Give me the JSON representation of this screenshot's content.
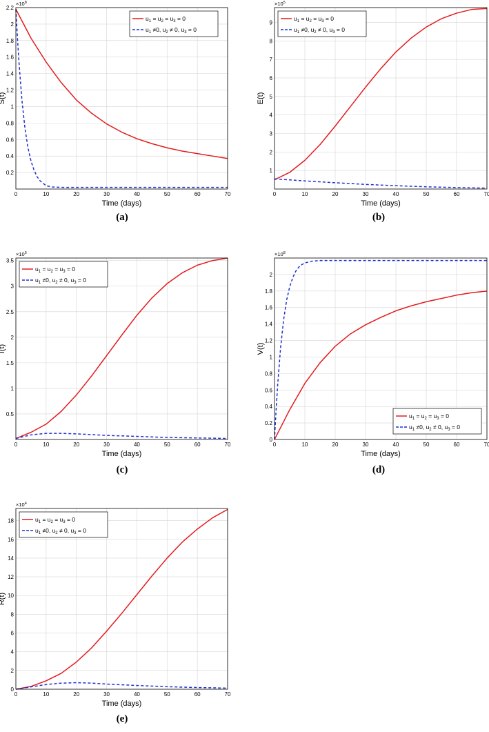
{
  "colors": {
    "series1": "#e41a1c",
    "series2": "#1f2fd0",
    "grid": "#d6d6d6",
    "axis": "#000000"
  },
  "legend": {
    "entries": [
      {
        "style": "solid",
        "sym1": "u",
        "sub1": "1",
        "sym2": "u",
        "sub2": "2",
        "sym3": "u",
        "sub3": "3",
        "op1": "=",
        "op2": "=",
        "op3": "=",
        "val": "0"
      },
      {
        "style": "dashed",
        "sym1": "u",
        "sub1": "1",
        "sym2": "u",
        "sub2": "2",
        "sym3": "u",
        "sub3": "3",
        "op1": "≠0,",
        "op2": "≠ 0,",
        "op3": "=",
        "val": "0"
      }
    ]
  },
  "chart_data": [
    {
      "type": "line",
      "caption": "(a)",
      "ylabel": "S(t)",
      "xlabel": "Time (days)",
      "exponent_base": "×10",
      "exponent": "8",
      "xlim": [
        0,
        70
      ],
      "ylim": [
        0.0,
        2.2
      ],
      "xticks": [
        0,
        10,
        20,
        30,
        40,
        50,
        60,
        70
      ],
      "yticks": [
        0.2,
        0.4,
        0.6,
        0.8,
        1.0,
        1.2,
        1.4,
        1.6,
        1.8,
        2.0,
        2.2
      ],
      "ytick_labels": [
        "0.2",
        "0.4",
        "0.6",
        "0.8",
        "1",
        "1.2",
        "1.4",
        "1.6",
        "1.8",
        "2",
        "2.2"
      ],
      "legend_position": "top-right",
      "series": [
        {
          "style": "solid",
          "x": [
            0,
            5,
            10,
            15,
            20,
            25,
            30,
            35,
            40,
            45,
            50,
            55,
            60,
            65,
            70
          ],
          "y": [
            2.18,
            1.83,
            1.54,
            1.29,
            1.08,
            0.92,
            0.79,
            0.69,
            0.61,
            0.55,
            0.5,
            0.46,
            0.43,
            0.4,
            0.37
          ]
        },
        {
          "style": "dashed",
          "x": [
            0,
            0.5,
            1,
            2,
            3,
            4,
            5,
            6,
            7,
            8,
            9,
            10,
            12,
            15,
            20,
            30,
            40,
            50,
            60,
            70
          ],
          "y": [
            2.18,
            1.85,
            1.55,
            1.08,
            0.74,
            0.5,
            0.34,
            0.23,
            0.15,
            0.1,
            0.07,
            0.04,
            0.025,
            0.02,
            0.02,
            0.02,
            0.02,
            0.02,
            0.02,
            0.02
          ]
        }
      ]
    },
    {
      "type": "line",
      "caption": "(b)",
      "ylabel": "E(t)",
      "xlabel": "Time (days)",
      "exponent_base": "×10",
      "exponent": "5",
      "xlim": [
        0,
        70
      ],
      "ylim": [
        0,
        9.8
      ],
      "xticks": [
        0,
        10,
        20,
        30,
        40,
        50,
        60,
        70
      ],
      "yticks": [
        1,
        2,
        3,
        4,
        5,
        6,
        7,
        8,
        9
      ],
      "ytick_labels": [
        "1",
        "2",
        "3",
        "4",
        "5",
        "6",
        "7",
        "8",
        "9"
      ],
      "legend_position": "top-left",
      "series": [
        {
          "style": "solid",
          "x": [
            0,
            5,
            10,
            15,
            20,
            25,
            30,
            35,
            40,
            45,
            50,
            55,
            60,
            65,
            70
          ],
          "y": [
            0.5,
            0.9,
            1.55,
            2.4,
            3.4,
            4.45,
            5.5,
            6.5,
            7.4,
            8.15,
            8.75,
            9.2,
            9.5,
            9.7,
            9.75
          ]
        },
        {
          "style": "dashed",
          "x": [
            0,
            10,
            20,
            30,
            40,
            50,
            60,
            70
          ],
          "y": [
            0.55,
            0.44,
            0.34,
            0.25,
            0.18,
            0.12,
            0.08,
            0.05
          ]
        }
      ]
    },
    {
      "type": "line",
      "caption": "(c)",
      "ylabel": "I(t)",
      "xlabel": "Time (days)",
      "exponent_base": "×10",
      "exponent": "5",
      "xlim": [
        0,
        70
      ],
      "ylim": [
        0,
        3.55
      ],
      "xticks": [
        0,
        10,
        20,
        30,
        40,
        50,
        60,
        70
      ],
      "yticks": [
        0.5,
        1.0,
        1.5,
        2.0,
        2.5,
        3.0,
        3.5
      ],
      "ytick_labels": [
        "0.5",
        "1",
        "1.5",
        "2",
        "2.5",
        "3",
        "3.5"
      ],
      "legend_position": "top-left",
      "series": [
        {
          "style": "solid",
          "x": [
            0,
            5,
            10,
            15,
            20,
            25,
            30,
            35,
            40,
            45,
            50,
            55,
            60,
            65,
            70
          ],
          "y": [
            0.02,
            0.14,
            0.3,
            0.55,
            0.87,
            1.24,
            1.64,
            2.04,
            2.43,
            2.77,
            3.05,
            3.26,
            3.41,
            3.5,
            3.55
          ]
        },
        {
          "style": "dashed",
          "x": [
            0,
            5,
            10,
            15,
            20,
            30,
            40,
            50,
            60,
            70
          ],
          "y": [
            0.02,
            0.09,
            0.12,
            0.12,
            0.11,
            0.08,
            0.06,
            0.04,
            0.03,
            0.02
          ]
        }
      ]
    },
    {
      "type": "line",
      "caption": "(d)",
      "ylabel": "V(t)",
      "xlabel": "Time (days)",
      "exponent_base": "×10",
      "exponent": "8",
      "xlim": [
        0,
        70
      ],
      "ylim": [
        0,
        2.2
      ],
      "xticks": [
        0,
        10,
        20,
        30,
        40,
        50,
        60,
        70
      ],
      "yticks": [
        0,
        0.2,
        0.4,
        0.6,
        0.8,
        1.0,
        1.2,
        1.4,
        1.6,
        1.8,
        2.0
      ],
      "ytick_labels": [
        "0",
        "0.2",
        "0.4",
        "0.6",
        "0.8",
        "1",
        "1.2",
        "1.4",
        "1.6",
        "1.8",
        "2"
      ],
      "legend_position": "bottom-right",
      "series": [
        {
          "style": "solid",
          "x": [
            0,
            5,
            10,
            15,
            20,
            25,
            30,
            35,
            40,
            45,
            50,
            55,
            60,
            65,
            70
          ],
          "y": [
            0,
            0.36,
            0.68,
            0.93,
            1.13,
            1.28,
            1.39,
            1.48,
            1.56,
            1.62,
            1.67,
            1.71,
            1.75,
            1.78,
            1.8
          ]
        },
        {
          "style": "dashed",
          "x": [
            0,
            0.5,
            1,
            2,
            3,
            4,
            5,
            6,
            7,
            8,
            9,
            10,
            12,
            15,
            20,
            30,
            40,
            50,
            60,
            70
          ],
          "y": [
            0,
            0.34,
            0.64,
            1.11,
            1.45,
            1.69,
            1.85,
            1.96,
            2.04,
            2.09,
            2.12,
            2.14,
            2.16,
            2.17,
            2.17,
            2.17,
            2.17,
            2.17,
            2.17,
            2.17
          ]
        }
      ]
    },
    {
      "type": "line",
      "caption": "(e)",
      "ylabel": "R(t)",
      "xlabel": "Time (days)",
      "exponent_base": "×10",
      "exponent": "4",
      "xlim": [
        0,
        70
      ],
      "ylim": [
        0,
        19.3
      ],
      "xticks": [
        0,
        10,
        20,
        30,
        40,
        50,
        60,
        70
      ],
      "yticks": [
        0,
        2,
        4,
        6,
        8,
        10,
        12,
        14,
        16,
        18
      ],
      "ytick_labels": [
        "0",
        "2",
        "4",
        "6",
        "8",
        "10",
        "12",
        "14",
        "16",
        "18"
      ],
      "legend_position": "top-left",
      "series": [
        {
          "style": "solid",
          "x": [
            0,
            5,
            10,
            15,
            20,
            25,
            30,
            35,
            40,
            45,
            50,
            55,
            60,
            65,
            70
          ],
          "y": [
            0,
            0.3,
            0.9,
            1.7,
            2.9,
            4.4,
            6.2,
            8.1,
            10.1,
            12.1,
            14.0,
            15.7,
            17.1,
            18.3,
            19.2
          ]
        },
        {
          "style": "dashed",
          "x": [
            0,
            5,
            10,
            15,
            20,
            25,
            30,
            40,
            50,
            60,
            70
          ],
          "y": [
            0,
            0.25,
            0.5,
            0.65,
            0.7,
            0.65,
            0.55,
            0.4,
            0.27,
            0.18,
            0.12
          ]
        }
      ]
    }
  ]
}
